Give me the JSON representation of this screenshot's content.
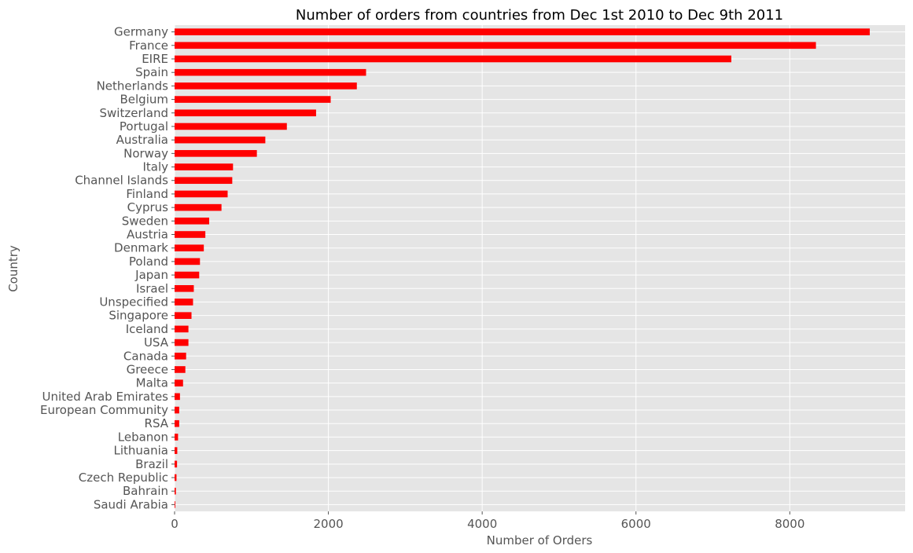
{
  "chart_data": {
    "type": "bar",
    "orientation": "horizontal",
    "title": "Number of orders from countries from Dec 1st 2010 to Dec 9th 2011",
    "xlabel": "Number of Orders",
    "ylabel": "Country",
    "xlim": [
      0,
      9500
    ],
    "xticks": [
      0,
      2000,
      4000,
      6000,
      8000
    ],
    "grid": true,
    "bar_color": "#ff0000",
    "background_color": "#e5e5e5",
    "categories": [
      "Germany",
      "France",
      "EIRE",
      "Spain",
      "Netherlands",
      "Belgium",
      "Switzerland",
      "Portugal",
      "Australia",
      "Norway",
      "Italy",
      "Channel Islands",
      "Finland",
      "Cyprus",
      "Sweden",
      "Austria",
      "Denmark",
      "Poland",
      "Japan",
      "Israel",
      "Unspecified",
      "Singapore",
      "Iceland",
      "USA",
      "Canada",
      "Greece",
      "Malta",
      "United Arab Emirates",
      "European Community",
      "RSA",
      "Lebanon",
      "Lithuania",
      "Brazil",
      "Czech Republic",
      "Bahrain",
      "Saudi Arabia"
    ],
    "values": [
      9040,
      8340,
      7240,
      2490,
      2370,
      2030,
      1840,
      1460,
      1180,
      1070,
      760,
      750,
      690,
      610,
      450,
      400,
      380,
      330,
      320,
      250,
      240,
      220,
      180,
      180,
      150,
      140,
      110,
      70,
      60,
      60,
      45,
      35,
      32,
      25,
      17,
      9
    ]
  }
}
